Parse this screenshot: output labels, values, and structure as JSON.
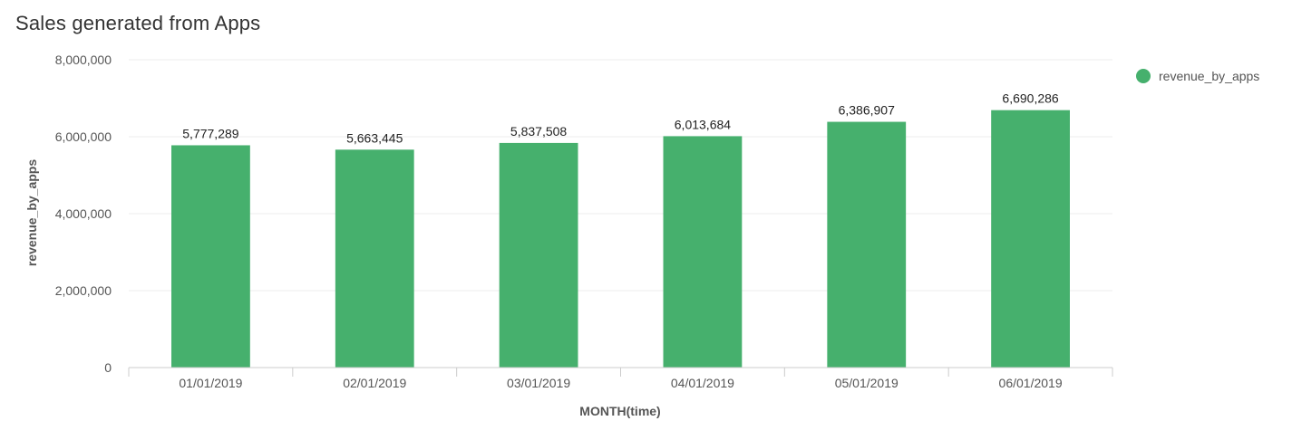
{
  "chart_data": {
    "type": "bar",
    "title": "Sales generated from Apps",
    "xlabel": "MONTH(time)",
    "ylabel": "revenue_by_apps",
    "categories": [
      "01/01/2019",
      "02/01/2019",
      "03/01/2019",
      "04/01/2019",
      "05/01/2019",
      "06/01/2019"
    ],
    "series": [
      {
        "name": "revenue_by_apps",
        "values": [
          5777289,
          5663445,
          5837508,
          6013684,
          6386907,
          6690286
        ],
        "labels": [
          "5,777,289",
          "5,663,445",
          "5,837,508",
          "6,013,684",
          "6,386,907",
          "6,690,286"
        ],
        "color": "#46b06d"
      }
    ],
    "ylim": [
      0,
      8000000
    ],
    "yticks": [
      0,
      2000000,
      4000000,
      6000000,
      8000000
    ],
    "ytick_labels": [
      "0",
      "2,000,000",
      "4,000,000",
      "6,000,000",
      "8,000,000"
    ],
    "grid": true,
    "legend_position": "top-right"
  },
  "colors": {
    "bar": "#46b06d",
    "grid": "#ececec",
    "axis": "#cccccc"
  }
}
